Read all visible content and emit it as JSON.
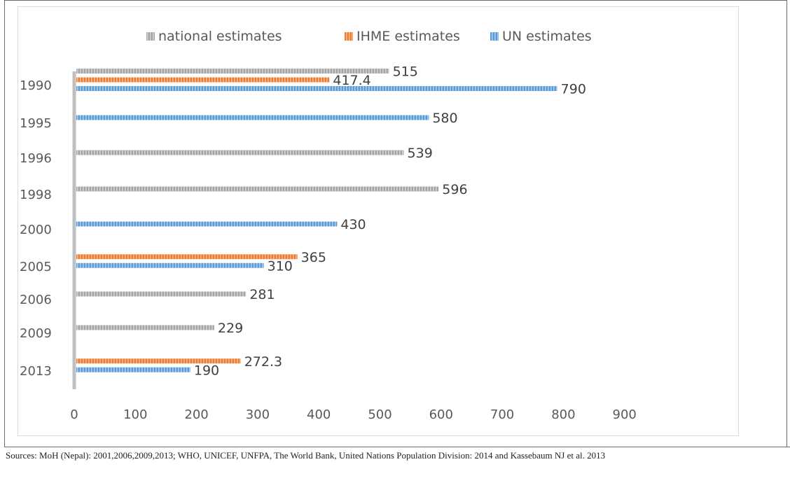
{
  "chart_data": {
    "type": "bar",
    "orientation": "horizontal",
    "categories": [
      "1990",
      "1995",
      "1996",
      "1998",
      "2000",
      "2005",
      "2006",
      "2009",
      "2013"
    ],
    "series": [
      {
        "name": "national estimates",
        "color": "#a5a5a5",
        "values": [
          515,
          null,
          539,
          596,
          null,
          null,
          281,
          229,
          null
        ],
        "labels": [
          "515",
          "",
          "539",
          "596",
          "",
          "",
          "281",
          "229",
          ""
        ]
      },
      {
        "name": "IHME estimates",
        "color": "#ed7d31",
        "values": [
          417.4,
          null,
          null,
          null,
          null,
          365,
          null,
          null,
          272.3
        ],
        "labels": [
          "417.4",
          "",
          "",
          "",
          "",
          "365",
          "",
          "",
          "272.3"
        ]
      },
      {
        "name": "UN estimates",
        "color": "#5b9bd5",
        "values": [
          790,
          580,
          null,
          null,
          430,
          310,
          null,
          null,
          190
        ],
        "labels": [
          "790",
          "580",
          "",
          "",
          "430",
          "310",
          "",
          "",
          "190"
        ]
      }
    ],
    "xlim": [
      0,
      900
    ],
    "xticks": [
      "0",
      "100",
      "200",
      "300",
      "400",
      "500",
      "600",
      "700",
      "800",
      "900"
    ],
    "grid": false,
    "legend_position": "top"
  },
  "source_note": "Sources: MoH (Nepal): 2001,2006,2009,2013; WHO, UNICEF, UNFPA, The World Bank, United Nations Population Division: 2014 and Kassebaum NJ et al. 2013"
}
